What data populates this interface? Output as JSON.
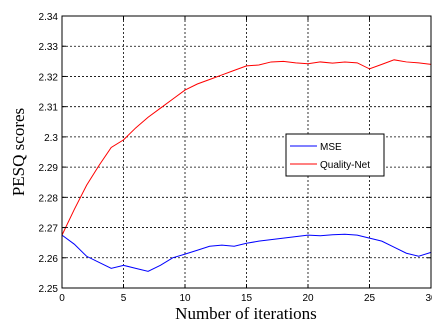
{
  "chart_data": {
    "type": "line",
    "title": "",
    "xlabel": "Number of iterations",
    "ylabel": "PESQ scores",
    "xlim": [
      0,
      30
    ],
    "ylim": [
      2.25,
      2.34
    ],
    "xticks": [
      0,
      5,
      10,
      15,
      20,
      25,
      30
    ],
    "yticks": [
      2.25,
      2.26,
      2.27,
      2.28,
      2.29,
      2.3,
      2.31,
      2.32,
      2.33,
      2.34
    ],
    "xtick_labels": [
      "0",
      "5",
      "10",
      "15",
      "20",
      "25",
      "30"
    ],
    "ytick_labels": [
      "2.25",
      "2.26",
      "2.27",
      "2.28",
      "2.29",
      "2.3",
      "2.31",
      "2.32",
      "2.33",
      "2.34"
    ],
    "grid": true,
    "legend_position": "right",
    "series": [
      {
        "name": "MSE",
        "color": "#0000ff",
        "x": [
          0,
          1,
          2,
          3,
          4,
          5,
          6,
          7,
          8,
          9,
          10,
          11,
          12,
          13,
          14,
          15,
          16,
          17,
          18,
          19,
          20,
          21,
          22,
          23,
          24,
          25,
          26,
          27,
          28,
          29,
          30
        ],
        "values": [
          2.2675,
          2.2645,
          2.2605,
          2.2585,
          2.2565,
          2.2575,
          2.2565,
          2.2555,
          2.2575,
          2.26,
          2.2612,
          2.2625,
          2.2638,
          2.2642,
          2.2638,
          2.2648,
          2.2655,
          2.266,
          2.2665,
          2.267,
          2.2675,
          2.2673,
          2.2676,
          2.2678,
          2.2675,
          2.2665,
          2.2655,
          2.2635,
          2.2615,
          2.2605,
          2.2618
        ]
      },
      {
        "name": "Quality-Net",
        "color": "#ff0000",
        "x": [
          0,
          1,
          2,
          3,
          4,
          5,
          6,
          7,
          8,
          9,
          10,
          11,
          12,
          13,
          14,
          15,
          16,
          17,
          18,
          19,
          20,
          21,
          22,
          23,
          24,
          25,
          26,
          27,
          28,
          29,
          30
        ],
        "values": [
          2.2675,
          2.276,
          2.284,
          2.2905,
          2.2965,
          2.299,
          2.303,
          2.3065,
          2.3095,
          2.3125,
          2.3155,
          2.3175,
          2.319,
          2.3205,
          2.322,
          2.3235,
          2.3238,
          2.3248,
          2.325,
          2.3245,
          2.3242,
          2.3248,
          2.3244,
          2.3248,
          2.3245,
          2.3225,
          2.324,
          2.3255,
          2.3248,
          2.3245,
          2.324
        ]
      }
    ]
  }
}
